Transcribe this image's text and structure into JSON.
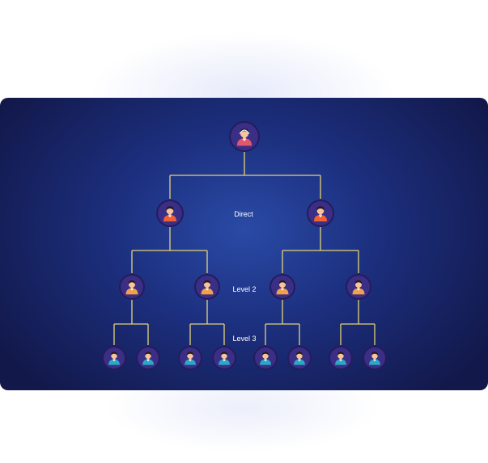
{
  "levels": {
    "direct": "Direct",
    "level2": "Level 2",
    "level3": "Level 3"
  },
  "colors": {
    "connector": "#e3d37a",
    "node_bg": "#3b2e86",
    "node_ring": "#241c5c",
    "skin": "#f6c59b",
    "hair_dark": "#2a1b1b",
    "top_shirt": "#e4576b",
    "direct_shirt": "#f06236",
    "l2_shirt": "#f0a14a",
    "l3_shirt": "#2aa8c6"
  },
  "icons": {
    "top": "person-icon",
    "direct": "person-icon",
    "level2": "person-icon",
    "level3": "person-icon"
  }
}
